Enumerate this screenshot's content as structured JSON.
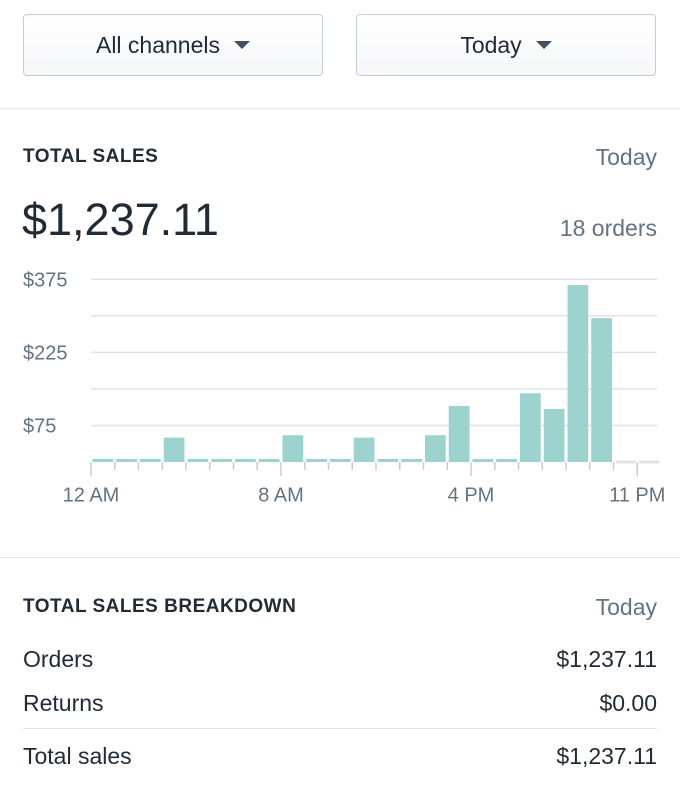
{
  "filters": [
    "All channels",
    "Today"
  ],
  "total_sales": {
    "title": "TOTAL SALES",
    "period": "Today",
    "amount": "$1,237.11",
    "orders": "18 orders"
  },
  "chart_data": {
    "type": "bar",
    "categories": [
      "12 AM",
      null,
      null,
      null,
      null,
      null,
      null,
      null,
      "8 AM",
      null,
      null,
      null,
      null,
      null,
      null,
      null,
      "4 PM",
      null,
      null,
      null,
      null,
      null,
      null,
      "11 PM"
    ],
    "values": [
      0,
      0,
      0,
      50,
      0,
      0,
      0,
      0,
      55,
      0,
      0,
      50,
      0,
      0,
      55,
      115,
      0,
      0,
      141,
      109,
      363,
      295,
      null,
      null
    ],
    "color": "#9dd3cf",
    "ylim": [
      0,
      400
    ],
    "yticks": [
      {
        "value": 75,
        "label": "$75"
      },
      {
        "value": 150,
        "label": null
      },
      {
        "value": 225,
        "label": "$225"
      },
      {
        "value": 300,
        "label": null
      },
      {
        "value": 375,
        "label": "$375"
      }
    ],
    "grid": true
  },
  "breakdown": {
    "title": "TOTAL SALES BREAKDOWN",
    "period": "Today",
    "rows": [
      [
        "Orders",
        "$1,237.11"
      ],
      [
        "Returns",
        "$0.00"
      ]
    ],
    "total": [
      "Total sales",
      "$1,237.11"
    ]
  }
}
